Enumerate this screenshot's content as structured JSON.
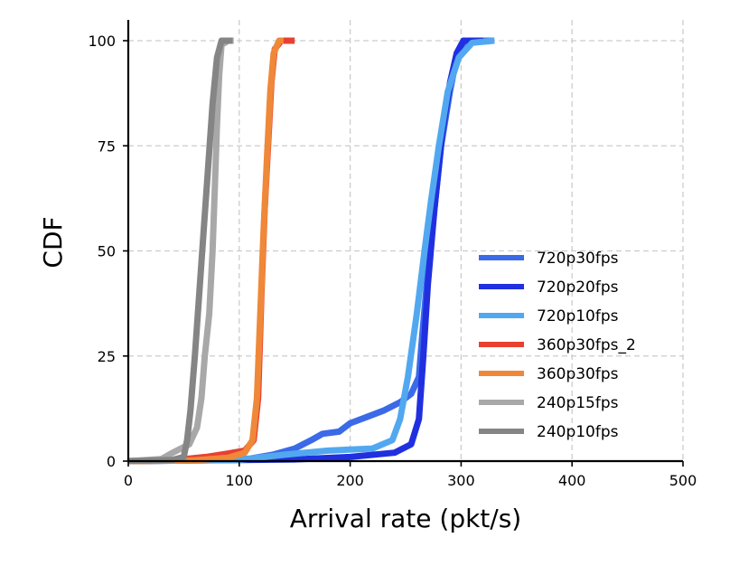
{
  "chart_data": {
    "type": "line",
    "title": "",
    "xlabel": "Arrival rate (pkt/s)",
    "ylabel": "CDF",
    "xlim": [
      0,
      500
    ],
    "ylim": [
      0,
      100
    ],
    "xticks": [
      0,
      100,
      200,
      300,
      400,
      500
    ],
    "yticks": [
      0,
      25,
      50,
      75,
      100
    ],
    "xtick_labels": [
      "0",
      "100",
      "200",
      "300",
      "400",
      "500"
    ],
    "ytick_labels": [
      "0",
      "25",
      "50",
      "75",
      "100"
    ],
    "grid": true,
    "legend_position": "lower-right",
    "series": [
      {
        "name": "720p30fps",
        "color": "#3b6ae8",
        "points": [
          [
            0,
            0
          ],
          [
            80,
            0.3
          ],
          [
            110,
            0.6
          ],
          [
            130,
            1.5
          ],
          [
            150,
            3
          ],
          [
            165,
            5
          ],
          [
            175,
            6.5
          ],
          [
            190,
            7
          ],
          [
            200,
            9
          ],
          [
            215,
            10.5
          ],
          [
            230,
            12
          ],
          [
            245,
            14
          ],
          [
            255,
            16
          ],
          [
            262,
            20
          ],
          [
            265,
            30
          ],
          [
            270,
            45
          ],
          [
            276,
            60
          ],
          [
            282,
            75
          ],
          [
            290,
            88
          ],
          [
            296,
            96
          ],
          [
            302,
            99
          ],
          [
            310,
            100
          ],
          [
            330,
            100
          ]
        ]
      },
      {
        "name": "720p20fps",
        "color": "#2030e0",
        "points": [
          [
            0,
            0
          ],
          [
            150,
            0.4
          ],
          [
            200,
            1
          ],
          [
            240,
            2
          ],
          [
            255,
            4
          ],
          [
            262,
            10
          ],
          [
            266,
            25
          ],
          [
            270,
            42
          ],
          [
            276,
            60
          ],
          [
            283,
            78
          ],
          [
            290,
            90
          ],
          [
            296,
            97
          ],
          [
            302,
            100
          ],
          [
            320,
            100
          ]
        ]
      },
      {
        "name": "720p10fps",
        "color": "#52a8f0",
        "points": [
          [
            0,
            0
          ],
          [
            100,
            0.3
          ],
          [
            140,
            1.5
          ],
          [
            180,
            2.5
          ],
          [
            220,
            3
          ],
          [
            238,
            5
          ],
          [
            245,
            10
          ],
          [
            252,
            20
          ],
          [
            260,
            35
          ],
          [
            267,
            50
          ],
          [
            273,
            62
          ],
          [
            280,
            75
          ],
          [
            288,
            88
          ],
          [
            298,
            96
          ],
          [
            310,
            99.5
          ],
          [
            330,
            100
          ]
        ]
      },
      {
        "name": "360p30fps_2",
        "color": "#e84030",
        "points": [
          [
            0,
            0
          ],
          [
            40,
            0.2
          ],
          [
            70,
            1
          ],
          [
            90,
            1.8
          ],
          [
            105,
            2.5
          ],
          [
            113,
            5
          ],
          [
            117,
            15
          ],
          [
            120,
            40
          ],
          [
            123,
            60
          ],
          [
            126,
            75
          ],
          [
            129,
            90
          ],
          [
            132,
            98
          ],
          [
            138,
            100
          ],
          [
            150,
            100
          ]
        ]
      },
      {
        "name": "360p30fps",
        "color": "#ef8838",
        "points": [
          [
            0,
            0
          ],
          [
            60,
            0.2
          ],
          [
            90,
            0.8
          ],
          [
            105,
            2
          ],
          [
            112,
            5
          ],
          [
            116,
            15
          ],
          [
            119,
            35
          ],
          [
            122,
            55
          ],
          [
            125,
            72
          ],
          [
            128,
            88
          ],
          [
            131,
            97
          ],
          [
            136,
            100
          ],
          [
            140,
            100
          ]
        ]
      },
      {
        "name": "240p15fps",
        "color": "#a8a8a8",
        "points": [
          [
            0,
            0
          ],
          [
            30,
            0.5
          ],
          [
            40,
            2
          ],
          [
            55,
            4
          ],
          [
            62,
            8
          ],
          [
            66,
            15
          ],
          [
            69,
            25
          ],
          [
            73,
            35
          ],
          [
            76,
            50
          ],
          [
            78,
            65
          ],
          [
            80,
            80
          ],
          [
            82,
            92
          ],
          [
            84,
            99
          ],
          [
            90,
            100
          ],
          [
            95,
            100
          ]
        ]
      },
      {
        "name": "240p10fps",
        "color": "#858585",
        "points": [
          [
            0,
            0
          ],
          [
            40,
            0.3
          ],
          [
            50,
            1
          ],
          [
            53,
            5
          ],
          [
            56,
            12
          ],
          [
            60,
            25
          ],
          [
            64,
            40
          ],
          [
            68,
            55
          ],
          [
            72,
            70
          ],
          [
            76,
            85
          ],
          [
            80,
            96
          ],
          [
            84,
            100
          ],
          [
            94,
            100
          ]
        ]
      }
    ]
  }
}
